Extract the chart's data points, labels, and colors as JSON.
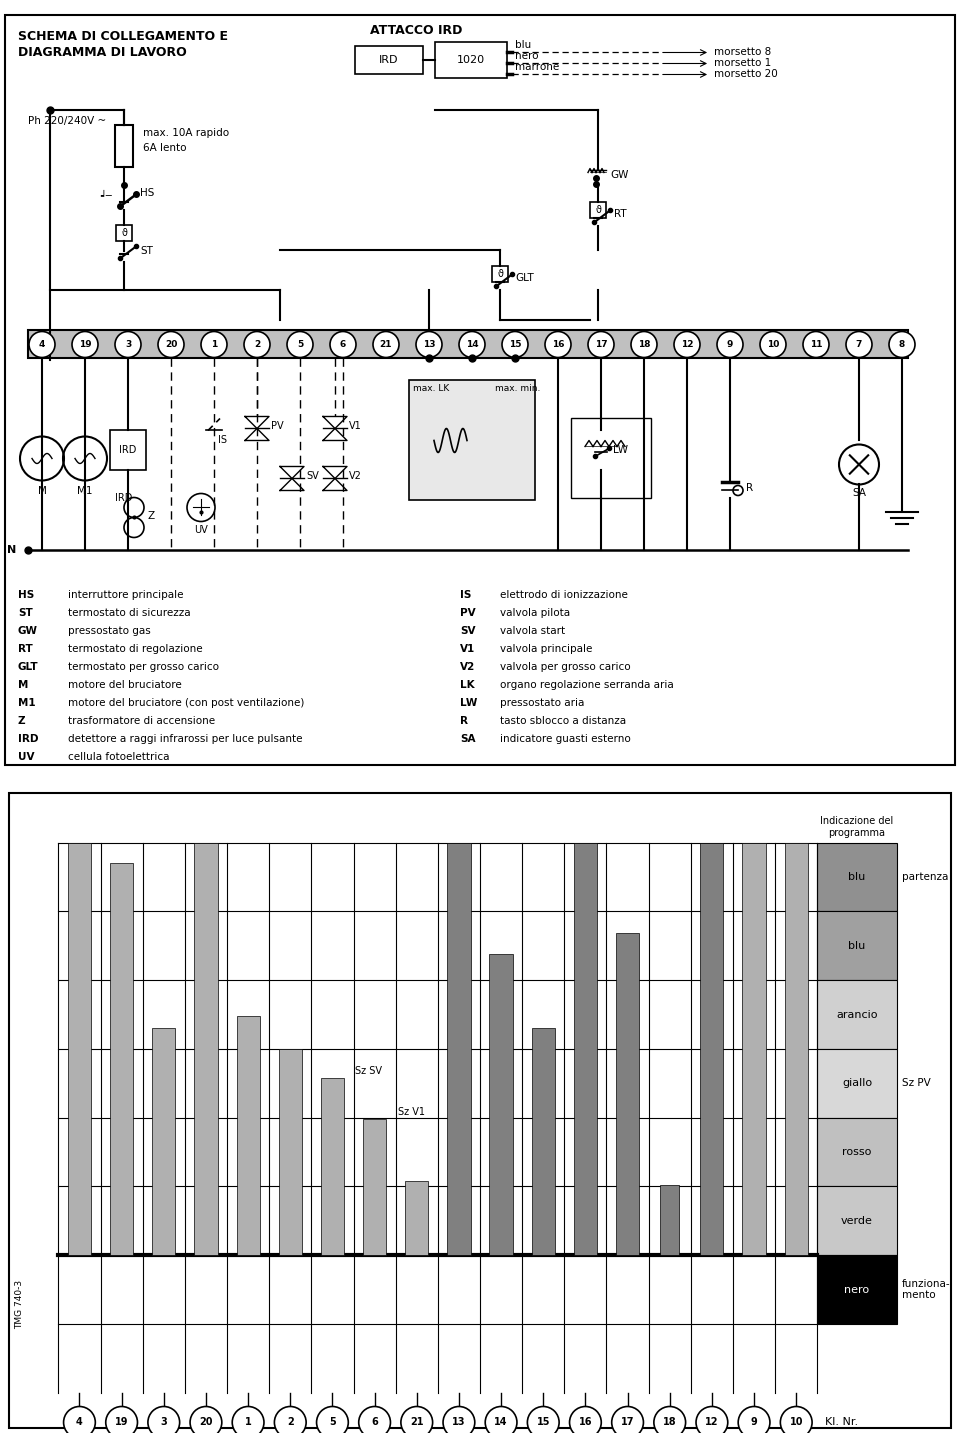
{
  "title_top": "SCHEMA DI COLLEGAMENTO E\nDIAGRAMMA DI LAVORO",
  "title_ird": "ATTACCO IRD",
  "bg_color": "#ffffff",
  "legend_left": [
    [
      "HS",
      "interruttore principale"
    ],
    [
      "ST",
      "termostato di sicurezza"
    ],
    [
      "GW",
      "pressostato gas"
    ],
    [
      "RT",
      "termostato di regolazione"
    ],
    [
      "GLT",
      "termostato per grosso carico"
    ],
    [
      "M",
      "motore del bruciatore"
    ],
    [
      "M1",
      "motore del bruciatore (con post ventilazione)"
    ],
    [
      "Z",
      "trasformatore di accensione"
    ],
    [
      "IRD",
      "detettore a raggi infrarossi per luce pulsante"
    ],
    [
      "UV",
      "cellula fotoelettrica"
    ]
  ],
  "legend_right": [
    [
      "IS",
      "elettrodo di ionizzazione"
    ],
    [
      "PV",
      "valvola pilota"
    ],
    [
      "SV",
      "valvola start"
    ],
    [
      "V1",
      "valvola principale"
    ],
    [
      "V2",
      "valvola per grosso carico"
    ],
    [
      "LK",
      "organo regolazione serranda aria"
    ],
    [
      "LW",
      "pressostato aria"
    ],
    [
      "R",
      "tasto sblocco a distanza"
    ],
    [
      "SA",
      "indicatore guasti esterno"
    ]
  ],
  "terminal_numbers_top": [
    4,
    19,
    3,
    20,
    1,
    2,
    5,
    6,
    21,
    13,
    14,
    15,
    16,
    17,
    18,
    12,
    9,
    10,
    11,
    7,
    8
  ],
  "terminal_numbers_bot": [
    4,
    19,
    3,
    20,
    1,
    2,
    5,
    6,
    21,
    13,
    14,
    15,
    16,
    17,
    18,
    12,
    9,
    10
  ],
  "prog_colors": [
    "#909090",
    "#a0a0a0",
    "#d0d0d0",
    "#d8d8d8",
    "#c0c0c0",
    "#c8c8c8",
    "#000000"
  ],
  "prog_labels": [
    "blu",
    "blu",
    "arancio",
    "giallo",
    "rosso",
    "verde",
    "nero"
  ],
  "side_labels_text": [
    "partenza",
    "",
    "",
    "Sz PV",
    "",
    "",
    "funziona-\nmento"
  ],
  "bar_light": "#b0b0b0",
  "bar_dark": "#808080"
}
